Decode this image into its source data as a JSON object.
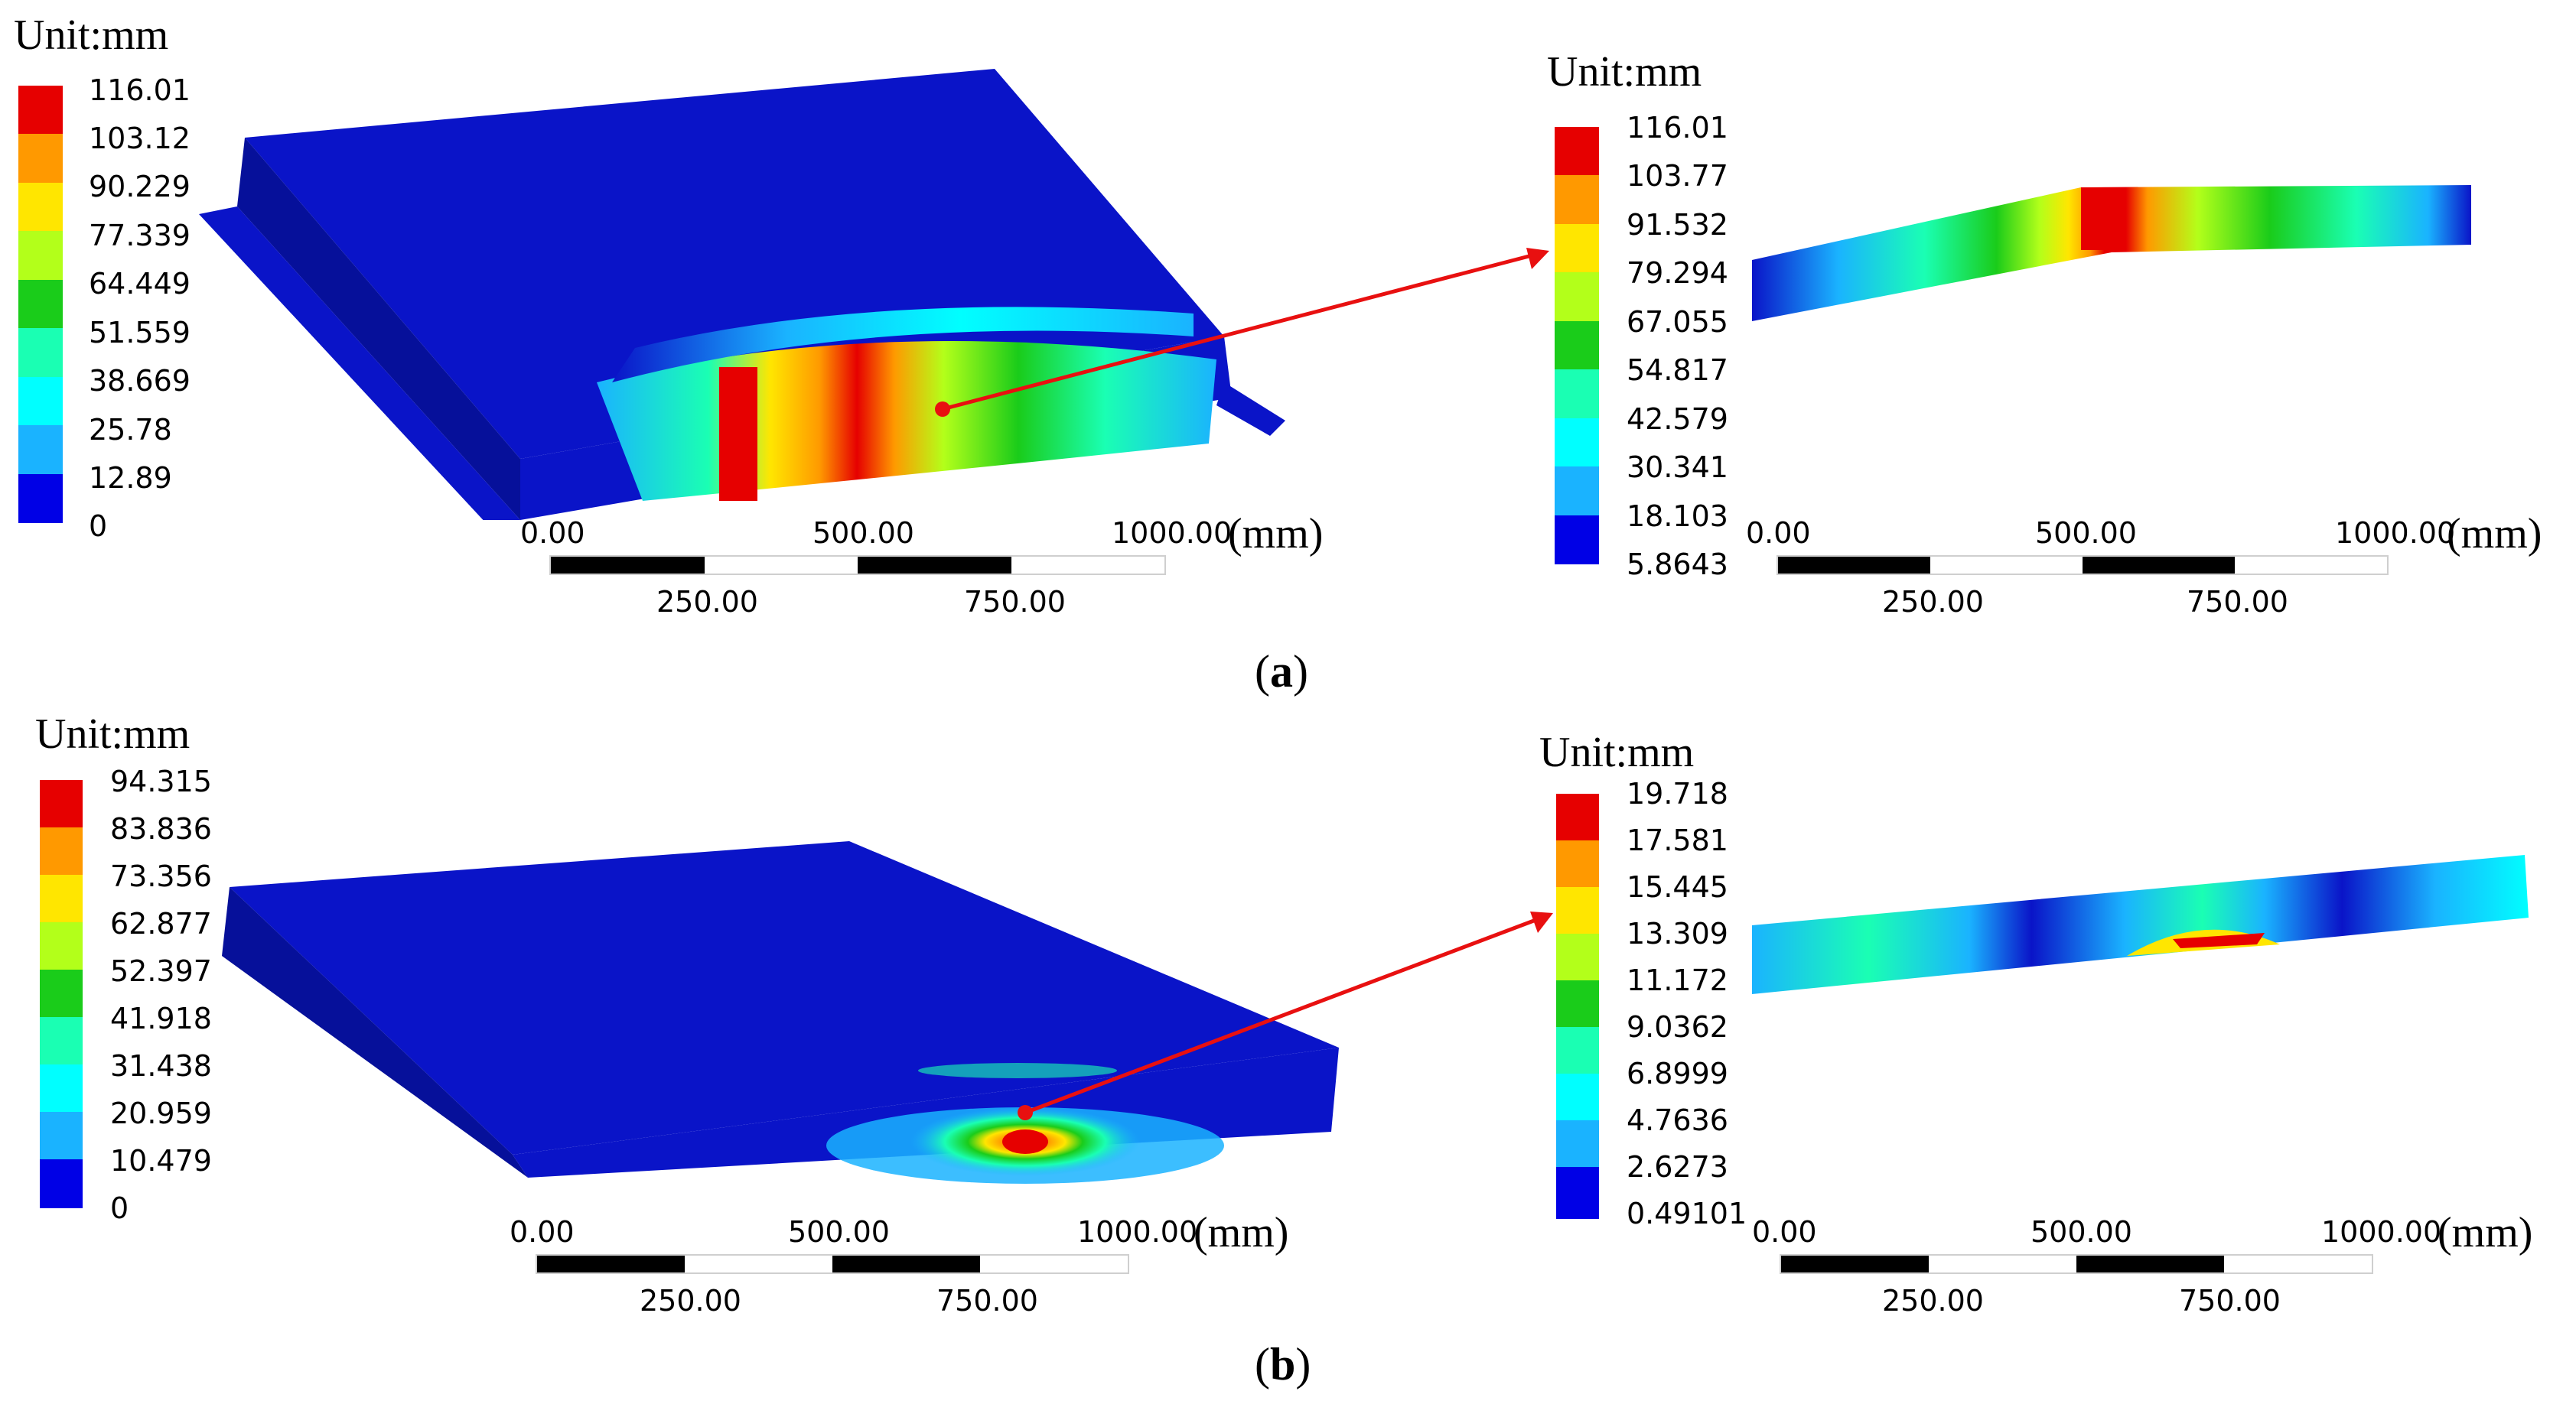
{
  "panels": [
    {
      "id": "a",
      "caption_open": "(",
      "caption_letter": "a",
      "caption_close": ")",
      "left": {
        "unit": "Unit:mm",
        "legend": [
          "116.01",
          "103.12",
          "90.229",
          "77.339",
          "64.449",
          "51.559",
          "38.669",
          "25.78",
          "12.89",
          "0"
        ],
        "scale_top": [
          "0.00",
          "500.00",
          "1000.00"
        ],
        "scale_bottom": [
          "250.00",
          "750.00"
        ],
        "scale_unit": "(mm)"
      },
      "right": {
        "unit": "Unit:mm",
        "legend": [
          "116.01",
          "103.77",
          "91.532",
          "79.294",
          "67.055",
          "54.817",
          "42.579",
          "30.341",
          "18.103",
          "5.8643"
        ],
        "scale_top": [
          "0.00",
          "500.00",
          "1000.00"
        ],
        "scale_bottom": [
          "250.00",
          "750.00"
        ],
        "scale_unit": "(mm)"
      }
    },
    {
      "id": "b",
      "caption_open": "(",
      "caption_letter": "b",
      "caption_close": ")",
      "left": {
        "unit": "Unit:mm",
        "legend": [
          "94.315",
          "83.836",
          "73.356",
          "62.877",
          "52.397",
          "41.918",
          "31.438",
          "20.959",
          "10.479",
          "0"
        ],
        "scale_top": [
          "0.00",
          "500.00",
          "1000.00"
        ],
        "scale_bottom": [
          "250.00",
          "750.00"
        ],
        "scale_unit": "(mm)"
      },
      "right": {
        "unit": "Unit:mm",
        "legend": [
          "19.718",
          "17.581",
          "15.445",
          "13.309",
          "11.172",
          "9.0362",
          "6.8999",
          "4.7636",
          "2.6273",
          "0.49101"
        ],
        "scale_top": [
          "0.00",
          "500.00",
          "1000.00"
        ],
        "scale_bottom": [
          "250.00",
          "750.00"
        ],
        "scale_unit": "(mm)"
      }
    }
  ],
  "colors": {
    "legend": [
      "#e60000",
      "#ff9900",
      "#ffe600",
      "#b3ff1a",
      "#1acc1a",
      "#1affb3",
      "#00ffff",
      "#1ab3ff",
      "#0000e6"
    ],
    "mesh_blue": "#0a14c8",
    "arrow": "#e81010"
  }
}
